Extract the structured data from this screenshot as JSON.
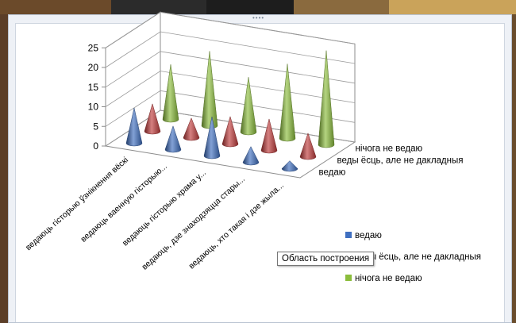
{
  "tooltip": "Область построения",
  "chart_data": {
    "type": "bar",
    "subtype": "3d-cone",
    "categories": [
      "ведаюць гісторыю ўзнікнення вёскі",
      "ведаюць ваенную гісторыю...",
      "ведаюць гісторыю храма у...",
      "ведаюць, дзе знаходзяцца стары...",
      "ведаюць, хто такая і дзе жыла..."
    ],
    "series": [
      {
        "name": "ведаю",
        "color": "#3f6fc0",
        "values": [
          9,
          6,
          10,
          4,
          2
        ]
      },
      {
        "name": "веды ёсць, але не дакладныя",
        "color": "#c03b3b",
        "values": [
          7,
          5,
          7,
          8,
          6
        ]
      },
      {
        "name": "нічога не ведаю",
        "color": "#8bbd3c",
        "values": [
          14,
          19,
          14,
          19,
          24
        ]
      }
    ],
    "y_ticks": [
      "0",
      "5",
      "10",
      "15",
      "20",
      "25"
    ],
    "ylim": [
      0,
      25
    ],
    "grid": true,
    "legend_position": "bottom-right"
  }
}
